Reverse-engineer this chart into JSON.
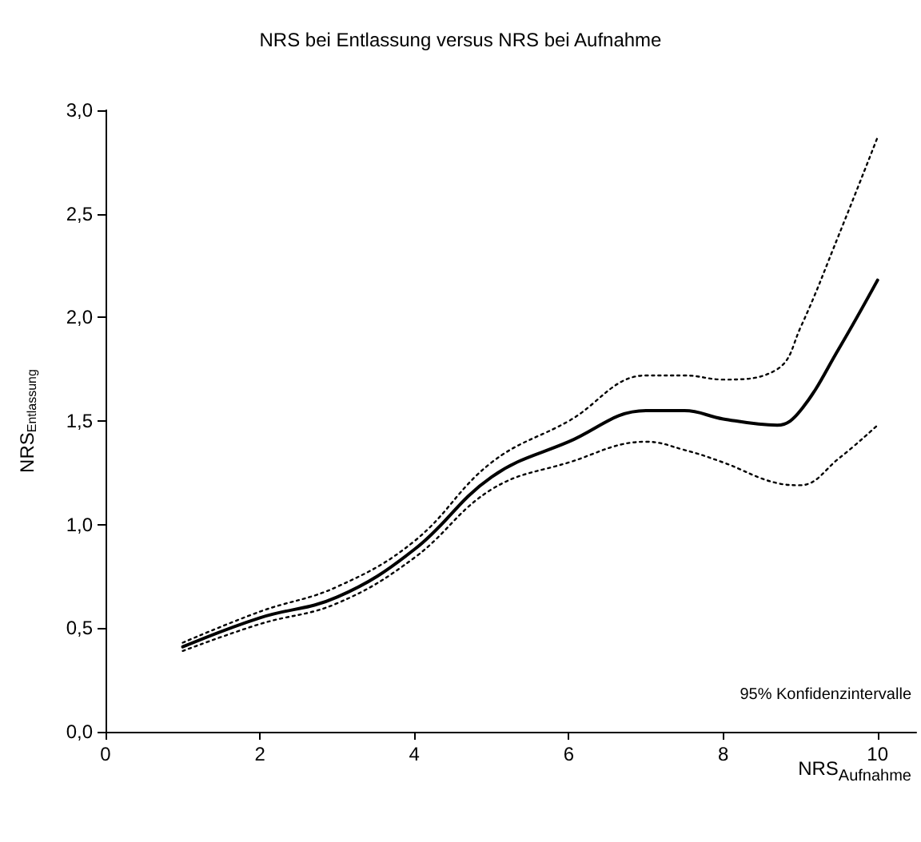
{
  "chart_data": {
    "type": "line",
    "title": "NRS bei Entlassung versus NRS bei Aufnahme",
    "xlabel": "NRS$_{Aufnahme}$",
    "ylabel": "NRS$_{Entlassung}$",
    "annotations": [
      "95% Konfidenzintervalle"
    ],
    "xlim": [
      0,
      10.5
    ],
    "xticks": [
      0,
      2,
      4,
      6,
      8,
      10
    ],
    "ylim": [
      0,
      3
    ],
    "yticks": [
      {
        "value": 0,
        "label": "0,0"
      },
      {
        "value": 0.5,
        "label": "0,5"
      },
      {
        "value": 1,
        "label": "1,0"
      },
      {
        "value": 1.5,
        "label": "1,5"
      },
      {
        "value": 2,
        "label": "2,0"
      },
      {
        "value": 2.5,
        "label": "2,5"
      },
      {
        "value": 3,
        "label": "3,0"
      }
    ],
    "grid": false,
    "marker": "none",
    "x": [
      1,
      2,
      3,
      4,
      5,
      6,
      7,
      7.5,
      8,
      8.7,
      9,
      9.5,
      10
    ],
    "series": [
      {
        "color": "#000000",
        "line_style": "solid",
        "values": [
          0.41,
          0.55,
          0.65,
          0.88,
          1.23,
          1.4,
          1.55,
          1.55,
          1.51,
          1.48,
          1.55,
          1.85,
          2.18
        ]
      },
      {
        "color": "#000000",
        "line_style": "dotted",
        "values": [
          0.43,
          0.58,
          0.7,
          0.92,
          1.3,
          1.5,
          1.72,
          1.72,
          1.7,
          1.75,
          1.95,
          2.4,
          2.87
        ]
      },
      {
        "color": "#000000",
        "line_style": "dotted",
        "values": [
          0.39,
          0.52,
          0.62,
          0.84,
          1.17,
          1.3,
          1.4,
          1.36,
          1.3,
          1.2,
          1.19,
          1.32,
          1.48
        ]
      }
    ]
  }
}
